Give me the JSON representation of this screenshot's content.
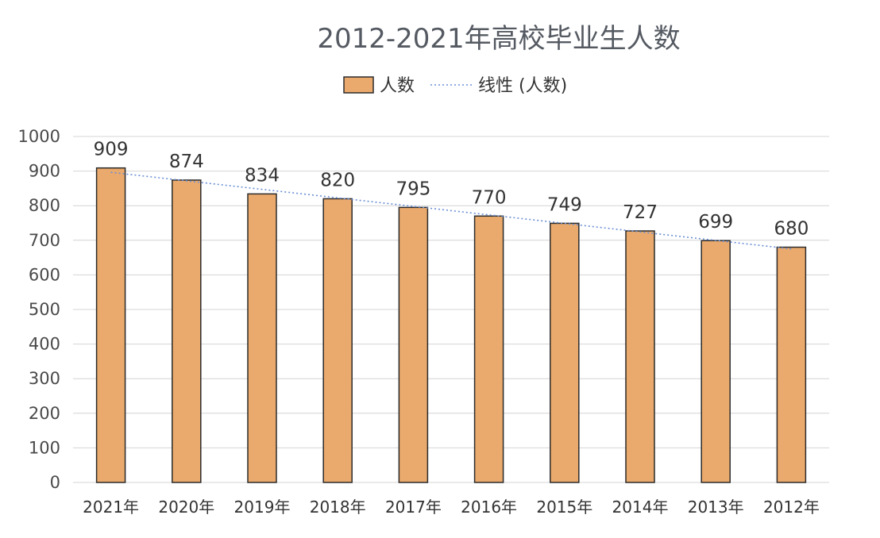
{
  "chart_data": {
    "type": "bar",
    "title": "2012-2021年高校毕业生人数",
    "xlabel": "",
    "ylabel": "",
    "ylim": [
      0,
      1000
    ],
    "yticks": [
      0,
      100,
      200,
      300,
      400,
      500,
      600,
      700,
      800,
      900,
      1000
    ],
    "grid": true,
    "legend_position": "top",
    "categories": [
      "2021年",
      "2020年",
      "2019年",
      "2018年",
      "2017年",
      "2016年",
      "2015年",
      "2014年",
      "2013年",
      "2012年"
    ],
    "series": [
      {
        "name": "人数",
        "values": [
          909,
          874,
          834,
          820,
          795,
          770,
          749,
          727,
          699,
          680
        ],
        "color": "#eaaa6d",
        "border_color": "#2b2b2b"
      }
    ],
    "trendline": {
      "name": "线性 (人数)",
      "type": "linear",
      "color": "#6b8fd4"
    }
  }
}
